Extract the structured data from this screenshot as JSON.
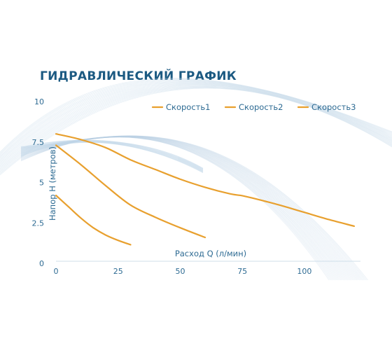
{
  "chart_data": {
    "type": "line",
    "title": "ГИДРАВЛИЧЕСКИЙ ГРАФИК",
    "xlabel": "Расход Q (л/мин)",
    "ylabel": "Напор H (метров)",
    "xlim": [
      0,
      122
    ],
    "ylim": [
      0,
      10
    ],
    "xticks": [
      "0",
      "25",
      "50",
      "75",
      "100"
    ],
    "yticks": [
      "0",
      "2.5",
      "5",
      "7.5",
      "10"
    ],
    "legend_position": "top-right",
    "grid": false,
    "series": [
      {
        "name": "Скорость1",
        "color": "#e8a02e",
        "points": [
          [
            0,
            4.2
          ],
          [
            5,
            3.5
          ],
          [
            10,
            2.8
          ],
          [
            15,
            2.2
          ],
          [
            20,
            1.75
          ],
          [
            25,
            1.42
          ],
          [
            30,
            1.15
          ]
        ]
      },
      {
        "name": "Скорость2",
        "color": "#e8a02e",
        "points": [
          [
            0,
            7.3
          ],
          [
            10,
            6.1
          ],
          [
            20,
            4.8
          ],
          [
            30,
            3.6
          ],
          [
            40,
            2.85
          ],
          [
            50,
            2.2
          ],
          [
            60,
            1.6
          ]
        ]
      },
      {
        "name": "Скорость3",
        "color": "#e8a02e",
        "points": [
          [
            0,
            8.0
          ],
          [
            10,
            7.65
          ],
          [
            20,
            7.15
          ],
          [
            30,
            6.4
          ],
          [
            40,
            5.8
          ],
          [
            50,
            5.2
          ],
          [
            60,
            4.7
          ],
          [
            70,
            4.3
          ],
          [
            75,
            4.18
          ],
          [
            80,
            4.0
          ],
          [
            90,
            3.6
          ],
          [
            100,
            3.15
          ],
          [
            110,
            2.7
          ],
          [
            120,
            2.3
          ]
        ]
      }
    ]
  }
}
